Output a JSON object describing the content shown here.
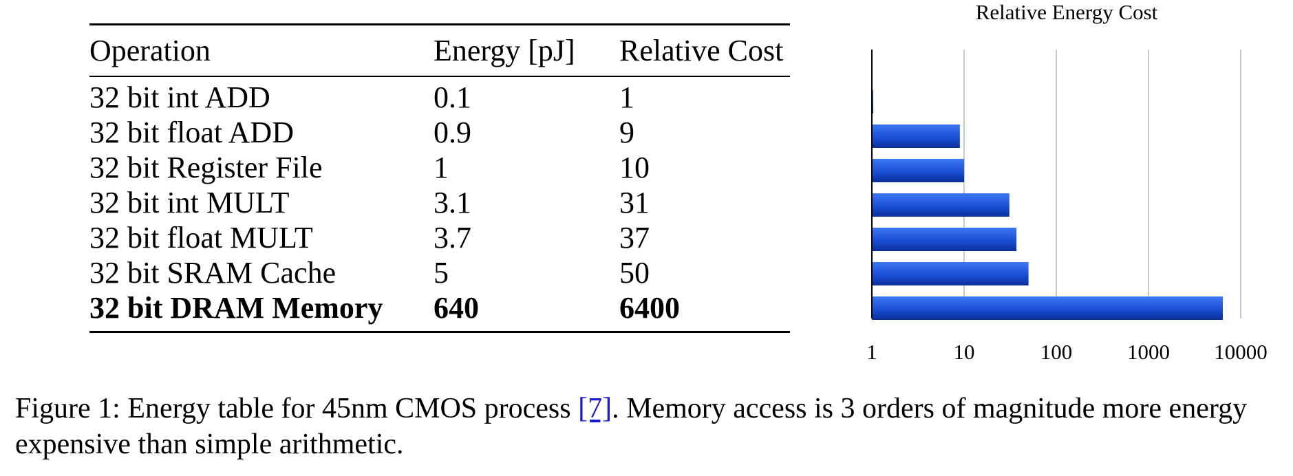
{
  "table": {
    "headers": [
      "Operation",
      "Energy [pJ]",
      "Relative Cost"
    ],
    "rows": [
      {
        "operation": "32 bit int ADD",
        "energy": "0.1",
        "relative": "1"
      },
      {
        "operation": "32 bit float ADD",
        "energy": "0.9",
        "relative": "9"
      },
      {
        "operation": "32 bit Register File",
        "energy": "1",
        "relative": "10"
      },
      {
        "operation": "32 bit int MULT",
        "energy": "3.1",
        "relative": "31"
      },
      {
        "operation": "32 bit float MULT",
        "energy": "3.7",
        "relative": "37"
      },
      {
        "operation": "32 bit SRAM Cache",
        "energy": "5",
        "relative": "50"
      },
      {
        "operation": "32 bit DRAM Memory",
        "energy": "640",
        "relative": "6400"
      }
    ]
  },
  "chart_data": {
    "type": "bar",
    "orientation": "horizontal",
    "title": "Relative Energy Cost",
    "xscale": "log",
    "xlim": [
      1,
      10000
    ],
    "xticks": [
      "1",
      "10",
      "100",
      "1000",
      "10000"
    ],
    "xlabel": "",
    "ylabel": "",
    "grid": true,
    "bar_color": "#1a4fd6",
    "categories": [
      "32 bit int ADD",
      "32 bit float ADD",
      "32 bit Register File",
      "32 bit int MULT",
      "32 bit float MULT",
      "32 bit SRAM Cache",
      "32 bit DRAM Memory"
    ],
    "values": [
      1,
      9,
      10,
      31,
      37,
      50,
      6400
    ]
  },
  "caption": {
    "prefix": "Figure 1: Energy table for 45nm CMOS process ",
    "ref": "[7]",
    "suffix": ". Memory access is 3 orders of magnitude more energy expensive than simple arithmetic."
  }
}
